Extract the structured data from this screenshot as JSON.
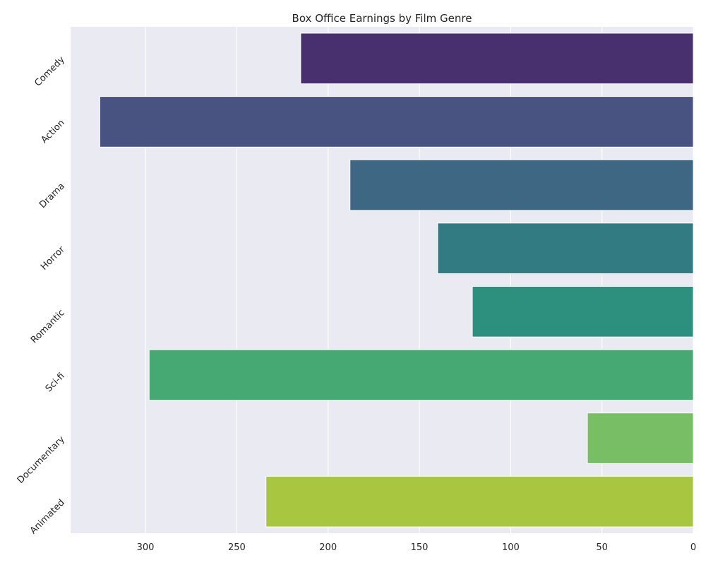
{
  "chart_data": {
    "type": "bar",
    "orientation": "horizontal",
    "x_axis_inverted": true,
    "title": "Box Office Earnings by Film Genre",
    "xlabel": "",
    "ylabel": "",
    "categories": [
      "Comedy",
      "Action",
      "Drama",
      "Horror",
      "Romantic",
      "Sci-fi",
      "Documentary",
      "Animated"
    ],
    "values": [
      215,
      325,
      188,
      140,
      121,
      298,
      58,
      234
    ],
    "colors": [
      "#482f6e",
      "#485381",
      "#3d6783",
      "#327b82",
      "#2d8f7d",
      "#46a974",
      "#77be65",
      "#a9c641"
    ],
    "xlim": [
      0,
      341
    ],
    "xticks": [
      0,
      50,
      100,
      150,
      200,
      250,
      300
    ],
    "grid": true,
    "background": "#eaeaf2"
  }
}
